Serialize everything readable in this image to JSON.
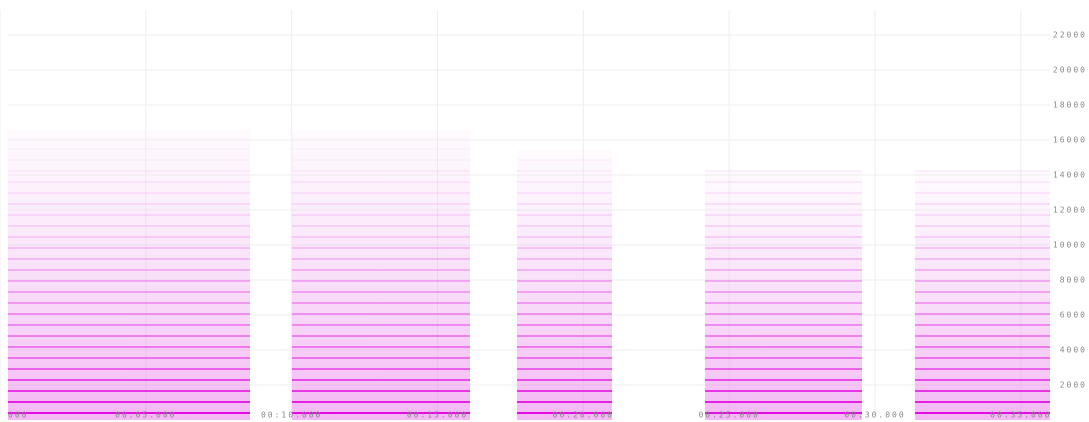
{
  "chart_data": {
    "type": "spectrogram",
    "xlim": [
      0,
      36
    ],
    "xticks": [
      {
        "value": 0,
        "label": "000"
      },
      {
        "value": 5,
        "label": "00:05.000"
      },
      {
        "value": 10,
        "label": "00:10.000"
      },
      {
        "value": 15,
        "label": "00:15.000"
      },
      {
        "value": 20,
        "label": "00:20.000"
      },
      {
        "value": 25,
        "label": "00:25.000"
      },
      {
        "value": 30,
        "label": "00:30.000"
      },
      {
        "value": 35,
        "label": "00:35.000"
      }
    ],
    "ylim": [
      0,
      24000
    ],
    "yticks": [
      2000,
      4000,
      6000,
      8000,
      10000,
      12000,
      14000,
      16000,
      18000,
      20000,
      22000
    ],
    "grid": true,
    "color": "#e000e0"
  }
}
